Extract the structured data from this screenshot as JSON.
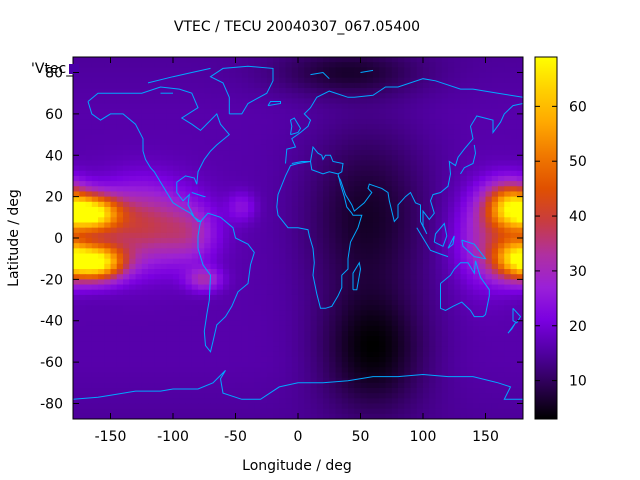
{
  "chart_data": {
    "type": "heatmap",
    "title": "VTEC / TECU 20040307_067.05400",
    "xlabel": "Longitude / deg",
    "ylabel": "Latitude / deg",
    "series_key_label": "'Vtec_",
    "xlim": [
      -180,
      180
    ],
    "ylim": [
      -87.5,
      87.5
    ],
    "x_ticks": [
      -150,
      -100,
      -50,
      0,
      50,
      100,
      150
    ],
    "y_ticks": [
      -80,
      -60,
      -40,
      -20,
      0,
      20,
      40,
      60,
      80
    ],
    "x_tick_labels": [
      "-150",
      "-100",
      "-50",
      "0",
      "50",
      "100",
      "150"
    ],
    "y_tick_labels": [
      "-80",
      "-60",
      "-40",
      "-20",
      "0",
      "20",
      "40",
      "60",
      "80"
    ],
    "colorbar": {
      "range": [
        3,
        69
      ],
      "ticks": [
        10,
        20,
        30,
        40,
        50,
        60
      ],
      "tick_labels": [
        "10",
        "20",
        "30",
        "40",
        "50",
        "60"
      ],
      "palette": [
        "#000000",
        "#2b0050",
        "#5000a0",
        "#7a00e0",
        "#9a20d8",
        "#b030a0",
        "#c83c40",
        "#e05000",
        "#f07800",
        "#ffa800",
        "#ffd000",
        "#ffff00"
      ]
    },
    "grid": {
      "lon_step": 5,
      "lat_step": 2.5,
      "lon_start": -180,
      "lat_start": 87.5,
      "note_overlay": "coastlines"
    },
    "features": [
      {
        "lon": -165,
        "lat": 12,
        "slon": 15,
        "slat": 6,
        "amp": 46
      },
      {
        "lon": -160,
        "lat": -12,
        "slon": 15,
        "slat": 6,
        "amp": 46
      },
      {
        "lon": -125,
        "lat": 6,
        "slon": 28,
        "slat": 14,
        "amp": 22
      },
      {
        "lon": -75,
        "lat": -20,
        "slon": 10,
        "slat": 4,
        "amp": 14
      },
      {
        "lon": -85,
        "lat": 2,
        "slon": 15,
        "slat": 10,
        "amp": 10
      },
      {
        "lon": -45,
        "lat": 15,
        "slon": 8,
        "slat": 5,
        "amp": 8
      },
      {
        "lon": 170,
        "lat": 15,
        "slon": 14,
        "slat": 8,
        "amp": 40
      },
      {
        "lon": 175,
        "lat": -10,
        "slon": 14,
        "slat": 7,
        "amp": 40
      },
      {
        "lon": 150,
        "lat": 0,
        "slon": 18,
        "slat": 16,
        "amp": 14
      },
      {
        "lon": 60,
        "lat": -55,
        "slon": 30,
        "slat": 20,
        "amp": -12
      },
      {
        "lon": 55,
        "lat": 10,
        "slon": 35,
        "slat": 30,
        "amp": -10
      },
      {
        "lon": 40,
        "lat": 80,
        "slon": 40,
        "slat": 8,
        "amp": -8
      }
    ],
    "base_value": 16
  },
  "colors": {
    "coastline": "#00a8ff",
    "frame": "#000000"
  }
}
